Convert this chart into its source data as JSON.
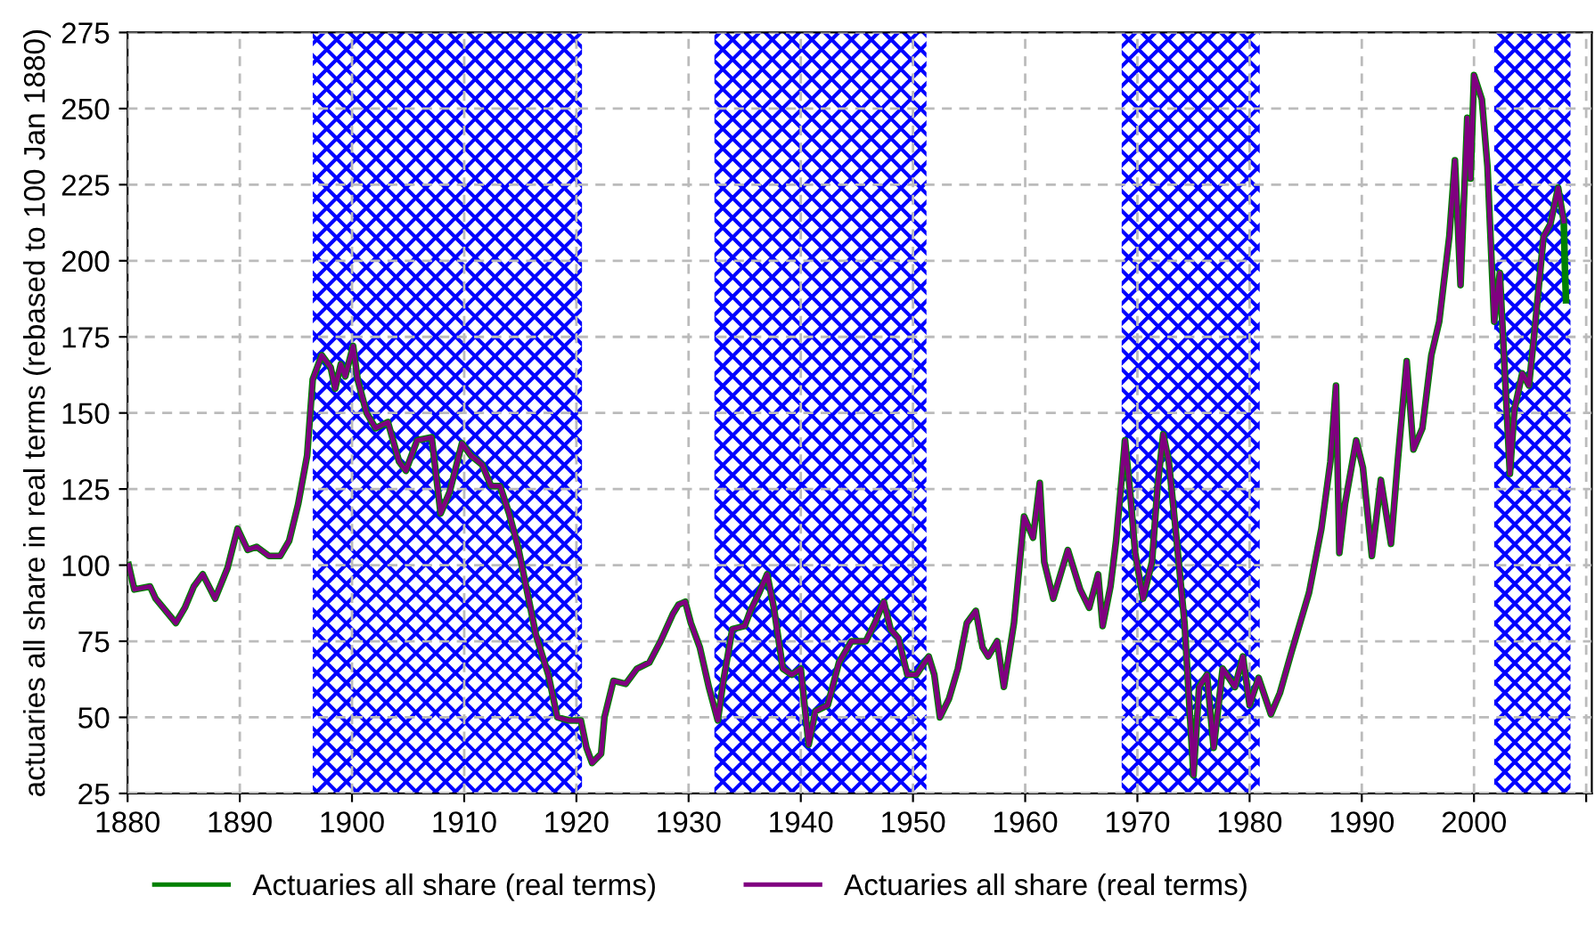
{
  "chart_data": {
    "type": "line",
    "ylabel": "actuaries all share in real terms (rebased to 100 Jan 1880)",
    "xlim": [
      1880,
      2010.5
    ],
    "xticks": [
      1880,
      1890,
      1900,
      1910,
      1920,
      1930,
      1940,
      1950,
      1960,
      1970,
      1980,
      1990,
      2000,
      {
        "value": 2010,
        "label": null
      }
    ],
    "ylim": [
      25,
      275
    ],
    "yticks": [
      25,
      50,
      75,
      100,
      125,
      150,
      175,
      200,
      225,
      250,
      275
    ],
    "grid": true,
    "legend": "bottom",
    "line_style": "solid",
    "marker": "none",
    "bands": [
      {
        "axis": "x",
        "from": 1896.5,
        "to": 1920.5,
        "color": "#0000ff"
      },
      {
        "axis": "x",
        "from": 1932.3,
        "to": 1951.2,
        "color": "#0000ff"
      },
      {
        "axis": "x",
        "from": 1968.6,
        "to": 1980.9,
        "color": "#0000ff"
      },
      {
        "axis": "x",
        "from": 2001.8,
        "to": 2008.6,
        "color": "#0000ff"
      }
    ],
    "series": [
      {
        "name": "Actuaries all share (real terms)",
        "color": "#008000",
        "x": [
          1880.1,
          1880.6,
          1882,
          1882.5,
          1884.3,
          1885.1,
          1885.9,
          1886.7,
          1887.8,
          1888.9,
          1889.8,
          1890.7,
          1891.5,
          1892.6,
          1893.6,
          1894.4,
          1895.2,
          1896,
          1896.5,
          1897.3,
          1898.1,
          1898.5,
          1899,
          1899.4,
          1900.1,
          1900.5,
          1901.3,
          1902.1,
          1903.2,
          1904.2,
          1904.8,
          1905.8,
          1907.1,
          1907.9,
          1908.7,
          1909.8,
          1910.6,
          1911.6,
          1912.4,
          1913.2,
          1914,
          1914.8,
          1916.4,
          1917.5,
          1918.3,
          1919.3,
          1920.4,
          1920.9,
          1921.4,
          1922.2,
          1922.5,
          1923.3,
          1924.4,
          1925.4,
          1926.5,
          1927.5,
          1928.6,
          1929.1,
          1929.7,
          1930.2,
          1931,
          1931.8,
          1932.6,
          1933.1,
          1933.9,
          1935,
          1935.5,
          1936.3,
          1937,
          1937.6,
          1938.4,
          1939.2,
          1940,
          1940.7,
          1941.3,
          1942.4,
          1943.4,
          1944.5,
          1945.8,
          1946.6,
          1947.4,
          1948,
          1948.7,
          1949.5,
          1950.3,
          1951.4,
          1951.9,
          1952.4,
          1953.2,
          1954,
          1954.8,
          1955.6,
          1956.2,
          1956.7,
          1957.5,
          1958.1,
          1959,
          1959.9,
          1960.7,
          1961.3,
          1961.7,
          1962.5,
          1963.8,
          1964.9,
          1965.7,
          1966.5,
          1966.9,
          1967.6,
          1968.1,
          1968.9,
          1969.4,
          1969.8,
          1970.5,
          1971.3,
          1971.8,
          1972.3,
          1972.8,
          1973.4,
          1974.2,
          1975,
          1975.5,
          1976.2,
          1976.8,
          1977.6,
          1978.7,
          1979.4,
          1980,
          1980.8,
          1981.9,
          1982.7,
          1983.7,
          1984.5,
          1985.3,
          1986.4,
          1987.2,
          1987.7,
          1988,
          1988.5,
          1989.5,
          1990.1,
          1990.9,
          1991.7,
          1992.6,
          1993.2,
          1994,
          1994.6,
          1995.4,
          1996.2,
          1996.9,
          1997.8,
          1998.3,
          1998.8,
          1999.4,
          1999.7,
          2000,
          2000.7,
          2001.2,
          2001.8,
          2002.3,
          2003.2,
          2003.6,
          2004.3,
          2004.9,
          2005.4,
          2006.2,
          2006.8,
          2007.5,
          2008,
          2008.1,
          2008.2
        ],
        "values": [
          100,
          92,
          93,
          89,
          81,
          86,
          93,
          97,
          89,
          99,
          112,
          105,
          106,
          103,
          103,
          108,
          120,
          136,
          161,
          169,
          165,
          158,
          166,
          162,
          172,
          161,
          150,
          145,
          147,
          134,
          131,
          141,
          142,
          117,
          124,
          140,
          136,
          133,
          126,
          126,
          117,
          106,
          77,
          64,
          50,
          49,
          49,
          40,
          35,
          38,
          50,
          62,
          61,
          66,
          68,
          75,
          84,
          87,
          88,
          81,
          73,
          60,
          49,
          62,
          79,
          80,
          85,
          91,
          97,
          86,
          66,
          64,
          66,
          41,
          52,
          54,
          68,
          75,
          75,
          81,
          88,
          79,
          76,
          64,
          64,
          70,
          64,
          50,
          56,
          66,
          81,
          85,
          73,
          70,
          75,
          60,
          81,
          116,
          109,
          127,
          101,
          89,
          105,
          92,
          86,
          97,
          80,
          93,
          108,
          141,
          122,
          104,
          89,
          101,
          126,
          143,
          134,
          112,
          81,
          31,
          60,
          64,
          40,
          66,
          60,
          70,
          54,
          63,
          51,
          58,
          71,
          81,
          91,
          112,
          134,
          159,
          104,
          120,
          141,
          132,
          103,
          128,
          107,
          134,
          167,
          138,
          145,
          169,
          180,
          208,
          233,
          192,
          247,
          227,
          261,
          253,
          231,
          180,
          196,
          130,
          151,
          163,
          159,
          177,
          208,
          212,
          224,
          213,
          198,
          187
        ]
      },
      {
        "name": "Actuaries all share (real terms)",
        "color": "#800080",
        "x": [
          1880.1,
          1880.6,
          1882,
          1882.5,
          1884.3,
          1885.1,
          1885.9,
          1886.7,
          1887.8,
          1888.9,
          1889.8,
          1890.7,
          1891.5,
          1892.6,
          1893.6,
          1894.4,
          1895.2,
          1896,
          1896.5,
          1897.3,
          1898.1,
          1898.5,
          1899,
          1899.4,
          1900.1,
          1900.5,
          1901.3,
          1902.1,
          1903.2,
          1904.2,
          1904.8,
          1905.8,
          1907.1,
          1907.9,
          1908.7,
          1909.8,
          1910.6,
          1911.6,
          1912.4,
          1913.2,
          1914,
          1914.8,
          1916.4,
          1917.5,
          1918.3,
          1919.3,
          1920.4,
          1920.9,
          1921.4,
          1922.2,
          1922.5,
          1923.3,
          1924.4,
          1925.4,
          1926.5,
          1927.5,
          1928.6,
          1929.1,
          1929.7,
          1930.2,
          1931,
          1931.8,
          1932.6,
          1933.1,
          1933.9,
          1935,
          1935.5,
          1936.3,
          1937,
          1937.6,
          1938.4,
          1939.2,
          1940,
          1940.7,
          1941.3,
          1942.4,
          1943.4,
          1944.5,
          1945.8,
          1946.6,
          1947.4,
          1948,
          1948.7,
          1949.5,
          1950.3,
          1951.4,
          1951.9,
          1952.4,
          1953.2,
          1954,
          1954.8,
          1955.6,
          1956.2,
          1956.7,
          1957.5,
          1958.1,
          1959,
          1959.9,
          1960.7,
          1961.3,
          1961.7,
          1962.5,
          1963.8,
          1964.9,
          1965.7,
          1966.5,
          1966.9,
          1967.6,
          1968.1,
          1968.9,
          1969.4,
          1969.8,
          1970.5,
          1971.3,
          1971.8,
          1972.3,
          1972.8,
          1973.4,
          1974.2,
          1975,
          1975.5,
          1976.2,
          1976.8,
          1977.6,
          1978.7,
          1979.4,
          1980,
          1980.8,
          1981.9,
          1982.7,
          1983.7,
          1984.5,
          1985.3,
          1986.4,
          1987.2,
          1987.7,
          1988,
          1988.5,
          1989.5,
          1990.1,
          1990.9,
          1991.7,
          1992.6,
          1993.2,
          1994,
          1994.6,
          1995.4,
          1996.2,
          1996.9,
          1997.8,
          1998.3,
          1998.8,
          1999.4,
          1999.7,
          2000,
          2000.7,
          2001.2,
          2001.8,
          2002.3,
          2003.2,
          2003.6,
          2004.3,
          2004.9,
          2005.4,
          2006.2,
          2006.8,
          2007.5,
          2008
        ],
        "values": [
          100,
          92,
          93,
          89,
          81,
          86,
          93,
          97,
          89,
          99,
          112,
          105,
          106,
          103,
          103,
          108,
          120,
          136,
          161,
          169,
          165,
          158,
          166,
          162,
          172,
          161,
          150,
          145,
          147,
          134,
          131,
          141,
          142,
          117,
          124,
          140,
          136,
          133,
          126,
          126,
          117,
          106,
          77,
          64,
          50,
          49,
          49,
          40,
          35,
          38,
          50,
          62,
          61,
          66,
          68,
          75,
          84,
          87,
          88,
          81,
          73,
          60,
          49,
          62,
          79,
          80,
          85,
          91,
          97,
          86,
          66,
          64,
          66,
          41,
          52,
          54,
          68,
          75,
          75,
          81,
          88,
          79,
          76,
          64,
          64,
          70,
          64,
          50,
          56,
          66,
          81,
          85,
          73,
          70,
          75,
          60,
          81,
          116,
          109,
          127,
          101,
          89,
          105,
          92,
          86,
          97,
          80,
          93,
          108,
          141,
          122,
          104,
          89,
          101,
          126,
          143,
          134,
          112,
          81,
          31,
          60,
          64,
          40,
          66,
          60,
          70,
          54,
          63,
          51,
          58,
          71,
          81,
          91,
          112,
          134,
          159,
          104,
          120,
          141,
          132,
          103,
          128,
          107,
          134,
          167,
          138,
          145,
          169,
          180,
          208,
          233,
          192,
          247,
          227,
          261,
          253,
          231,
          180,
          196,
          130,
          151,
          163,
          159,
          177,
          208,
          212,
          224,
          213
        ]
      }
    ]
  }
}
